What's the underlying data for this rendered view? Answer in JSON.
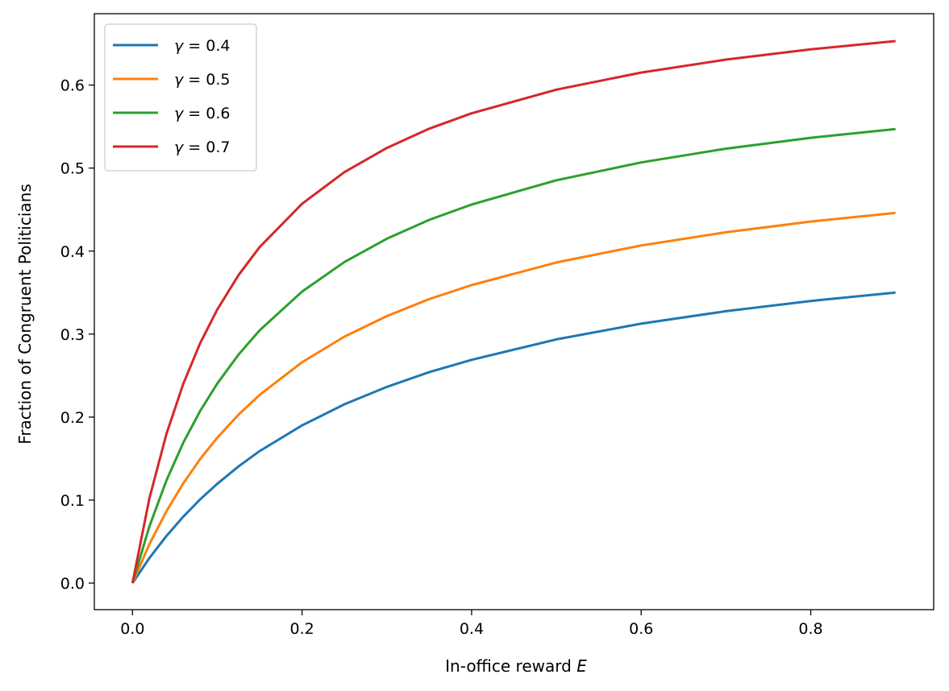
{
  "chart_data": {
    "type": "line",
    "title": "",
    "xlabel": "In-office reward E",
    "xlabel_prefix": "In-office reward ",
    "xlabel_var": "E",
    "ylabel": "Fraction of Congruent Politicians",
    "xlim": [
      -0.045,
      0.945
    ],
    "ylim": [
      -0.032,
      0.686
    ],
    "xticks": [
      0.0,
      0.2,
      0.4,
      0.6,
      0.8
    ],
    "xtick_labels": [
      "0.0",
      "0.2",
      "0.4",
      "0.6",
      "0.8"
    ],
    "yticks": [
      0.0,
      0.1,
      0.2,
      0.3,
      0.4,
      0.5,
      0.6
    ],
    "ytick_labels": [
      "0.0",
      "0.1",
      "0.2",
      "0.3",
      "0.4",
      "0.5",
      "0.6"
    ],
    "grid": false,
    "legend_position": "top-left",
    "x": [
      0,
      0.02,
      0.04,
      0.06,
      0.08,
      0.1,
      0.125,
      0.15,
      0.2,
      0.25,
      0.3,
      0.35,
      0.4,
      0.5,
      0.6,
      0.7,
      0.8,
      0.9
    ],
    "series": [
      {
        "name": "γ = 0.4",
        "label_var": "γ",
        "label_val": "= 0.4",
        "color": "#1f77b4",
        "values": [
          0,
          0.0302,
          0.0567,
          0.0802,
          0.101,
          0.1197,
          0.1405,
          0.159,
          0.19,
          0.2154,
          0.2364,
          0.2541,
          0.269,
          0.2936,
          0.3125,
          0.3276,
          0.3399,
          0.35
        ]
      },
      {
        "name": "γ = 0.5",
        "label_var": "γ",
        "label_val": "= 0.5",
        "color": "#ff7f0e",
        "values": [
          0,
          0.0469,
          0.0865,
          0.1203,
          0.1496,
          0.1752,
          0.2029,
          0.2268,
          0.2661,
          0.2969,
          0.3217,
          0.3421,
          0.359,
          0.3863,
          0.4068,
          0.4227,
          0.4356,
          0.446
        ]
      },
      {
        "name": "γ = 0.6",
        "label_var": "γ",
        "label_val": "= 0.6",
        "color": "#2ca02c",
        "values": [
          0,
          0.0683,
          0.1236,
          0.1693,
          0.2077,
          0.2405,
          0.2752,
          0.3045,
          0.3512,
          0.3869,
          0.4149,
          0.4376,
          0.456,
          0.4853,
          0.5068,
          0.5234,
          0.5365,
          0.547
        ]
      },
      {
        "name": "γ = 0.7",
        "label_var": "γ",
        "label_val": "= 0.7",
        "color": "#d62728",
        "values": [
          0,
          0.1021,
          0.1796,
          0.2404,
          0.2894,
          0.3296,
          0.371,
          0.4048,
          0.4569,
          0.4951,
          0.5243,
          0.5474,
          0.566,
          0.5945,
          0.6151,
          0.6307,
          0.643,
          0.653
        ]
      }
    ]
  }
}
